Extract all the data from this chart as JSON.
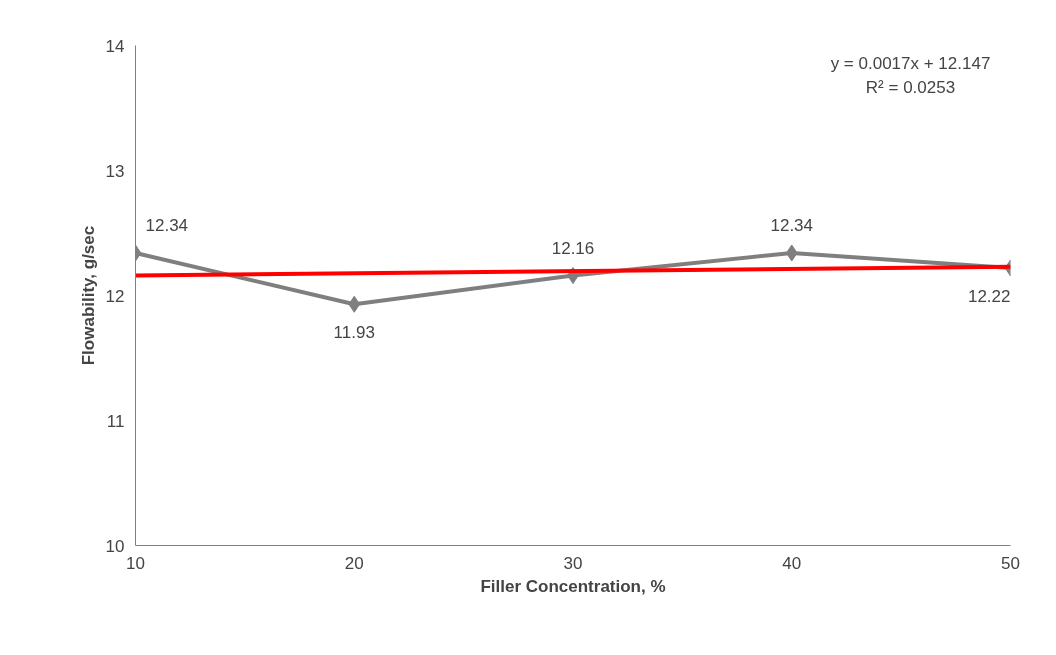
{
  "chart_data": {
    "type": "line",
    "xlabel": "Filler Concentration, %",
    "ylabel": "Flowability, g/sec",
    "x": [
      10,
      20,
      30,
      40,
      50
    ],
    "series": [
      {
        "color": "#7f7f7f",
        "values": [
          12.34,
          11.93,
          12.16,
          12.34,
          12.22
        ],
        "marker": "diamond",
        "data_labels": true
      },
      {
        "type": "line",
        "color": "#ff0000",
        "x": [
          10,
          50
        ],
        "values": [
          12.16,
          12.23
        ],
        "marker": "none"
      }
    ],
    "annotations": [
      "y = 0.0017x + 12.147",
      "R² = 0.0253"
    ],
    "xlim": [
      10,
      50
    ],
    "ylim": [
      10,
      14
    ],
    "xticks": [
      10,
      20,
      30,
      40,
      50
    ],
    "yticks": [
      10,
      11,
      12,
      13,
      14
    ],
    "grid": false
  }
}
